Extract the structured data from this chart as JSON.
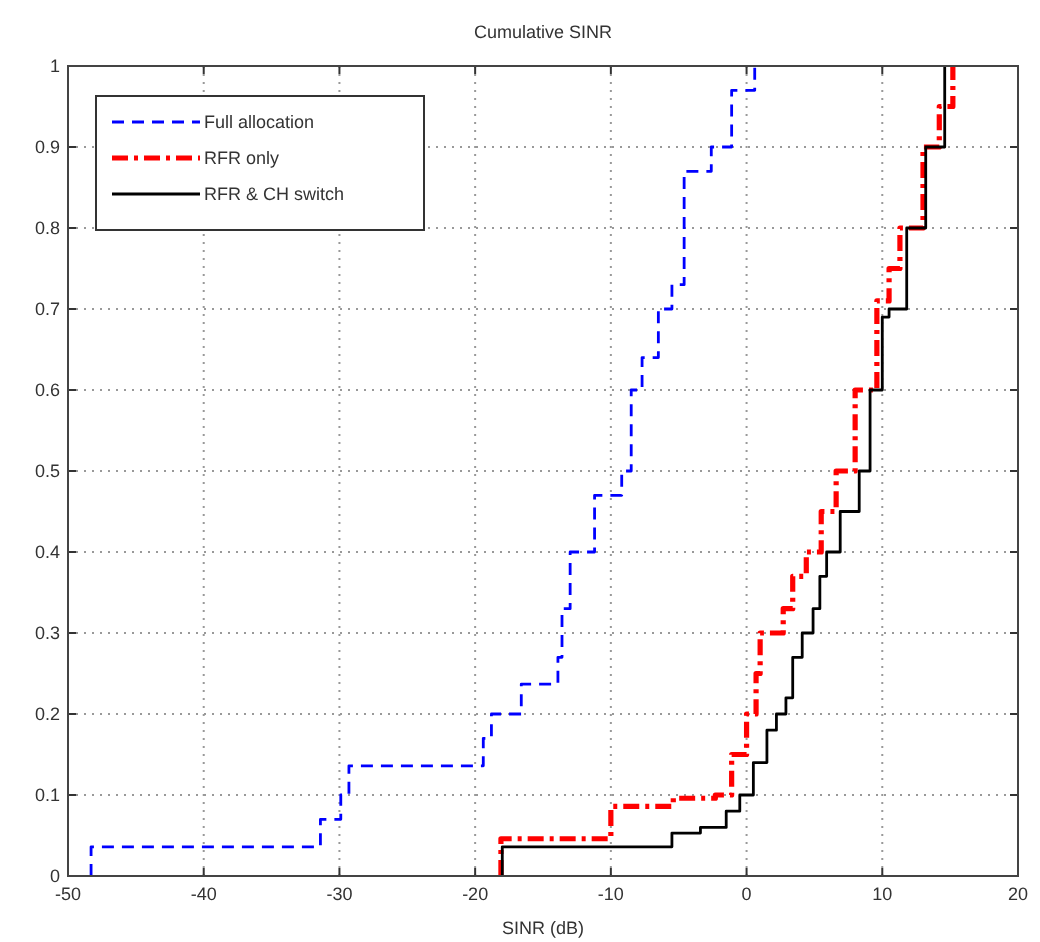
{
  "chart_data": {
    "type": "step",
    "title": "Cumulative SINR",
    "xlabel": "SINR (dB)",
    "xlim": [
      -50,
      20
    ],
    "xticks": [
      -50,
      -40,
      -30,
      -20,
      -10,
      0,
      10,
      20
    ],
    "ylim": [
      0,
      1
    ],
    "yticks": [
      0,
      0.1,
      0.2,
      0.3,
      0.4,
      0.5,
      0.6,
      0.7,
      0.8,
      0.9,
      1
    ],
    "grid": true,
    "legend": "top left",
    "series": [
      {
        "name": "Full allocation",
        "color": "#0000ff",
        "line_style": "dashed",
        "x": [
          -48.3,
          -48.3,
          -31.4,
          -29.9,
          -29.3,
          -19.4,
          -18.8,
          -16.6,
          -13.9,
          -13.6,
          -13,
          -11.2,
          -9.2,
          -8.5,
          -7.7,
          -6.5,
          -5.5,
          -4.6,
          -2.6,
          -1.1,
          0.6
        ],
        "values": [
          0,
          0.036,
          0.07,
          0.1,
          0.136,
          0.17,
          0.2,
          0.237,
          0.27,
          0.33,
          0.4,
          0.47,
          0.5,
          0.6,
          0.64,
          0.7,
          0.73,
          0.87,
          0.9,
          0.97,
          1
        ]
      },
      {
        "name": "RFR only",
        "color": "#ff0000",
        "line_style": "dashdot",
        "x": [
          -18.1,
          -18.1,
          -10,
          -5.4,
          -2.3,
          -1.1,
          0,
          0.7,
          1,
          2.7,
          3.4,
          4.4,
          5.5,
          6.6,
          8,
          9.6,
          10.5,
          11.3,
          13,
          14.2,
          15.2
        ],
        "values": [
          0,
          0.046,
          0.086,
          0.096,
          0.1,
          0.15,
          0.2,
          0.25,
          0.3,
          0.33,
          0.37,
          0.4,
          0.45,
          0.5,
          0.6,
          0.71,
          0.75,
          0.8,
          0.9,
          0.95,
          1
        ]
      },
      {
        "name": "RFR & CH switch",
        "color": "#000000",
        "line_style": "solid",
        "x": [
          -18,
          -18,
          -5.5,
          -3.4,
          -1.5,
          -0.5,
          0.5,
          1.5,
          2.2,
          2.9,
          3.4,
          4.1,
          4.9,
          5.4,
          5.9,
          6.9,
          8.3,
          9.1,
          10,
          10.5,
          11.8,
          13.2,
          14.6
        ],
        "values": [
          0,
          0.036,
          0.053,
          0.06,
          0.08,
          0.1,
          0.14,
          0.18,
          0.2,
          0.22,
          0.27,
          0.3,
          0.33,
          0.37,
          0.4,
          0.45,
          0.5,
          0.6,
          0.69,
          0.7,
          0.8,
          0.9,
          1
        ]
      }
    ]
  }
}
